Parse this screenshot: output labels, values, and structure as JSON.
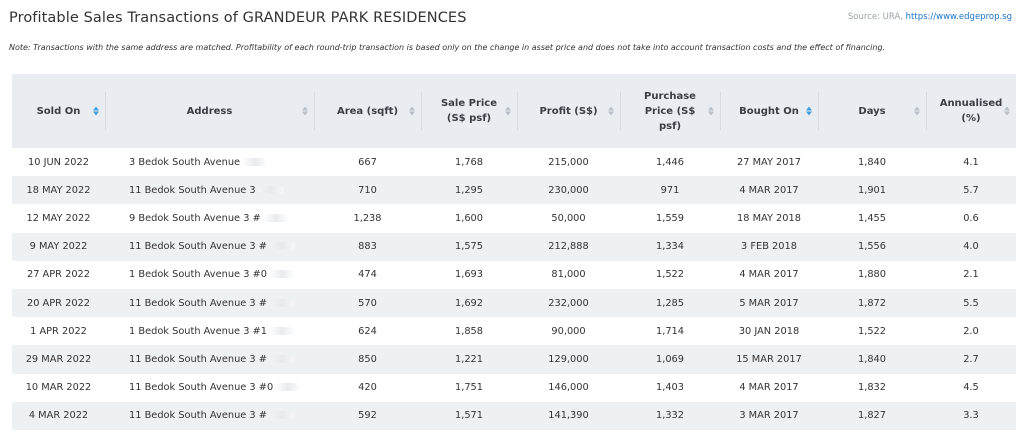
{
  "title": "Profitable Sales Transactions of GRANDEUR PARK RESIDENCES",
  "source": {
    "prefix": "Source: URA,",
    "link": "https://www.edgeprop.sg"
  },
  "note": "Note: Transactions with the same address are matched. Profitability of each round-trip transaction is based only on the change in asset price and does not take into account transaction costs and the effect of financing.",
  "columns": [
    {
      "label": "Sold On",
      "sort": "active"
    },
    {
      "label": "Address",
      "sort": "inactive"
    },
    {
      "label": "Area (sqft)",
      "sort": "inactive"
    },
    {
      "label": "Sale Price (S$ psf)",
      "sort": "inactive"
    },
    {
      "label": "Profit (S$)",
      "sort": "inactive"
    },
    {
      "label": "Purchase Price (S$ psf)",
      "sort": "inactive"
    },
    {
      "label": "Bought On",
      "sort": "active"
    },
    {
      "label": "Days",
      "sort": "inactive"
    },
    {
      "label": "Annualised (%)",
      "sort": "inactive"
    }
  ],
  "rows": [
    {
      "sold_on": "10 JUN 2022",
      "address": "3 Bedok South Avenue",
      "area": "667",
      "sale_price": "1,768",
      "profit": "215,000",
      "purchase_price": "1,446",
      "bought_on": "27 MAY 2017",
      "days": "1,840",
      "annualised": "4.1"
    },
    {
      "sold_on": "18 MAY 2022",
      "address": "11 Bedok South Avenue 3",
      "area": "710",
      "sale_price": "1,295",
      "profit": "230,000",
      "purchase_price": "971",
      "bought_on": "4 MAR 2017",
      "days": "1,901",
      "annualised": "5.7"
    },
    {
      "sold_on": "12 MAY 2022",
      "address": "9 Bedok South Avenue 3 #",
      "area": "1,238",
      "sale_price": "1,600",
      "profit": "50,000",
      "purchase_price": "1,559",
      "bought_on": "18 MAY 2018",
      "days": "1,455",
      "annualised": "0.6"
    },
    {
      "sold_on": "9 MAY 2022",
      "address": "11 Bedok South Avenue 3 #",
      "area": "883",
      "sale_price": "1,575",
      "profit": "212,888",
      "purchase_price": "1,334",
      "bought_on": "3 FEB 2018",
      "days": "1,556",
      "annualised": "4.0"
    },
    {
      "sold_on": "27 APR 2022",
      "address": "1 Bedok South Avenue 3 #0",
      "area": "474",
      "sale_price": "1,693",
      "profit": "81,000",
      "purchase_price": "1,522",
      "bought_on": "4 MAR 2017",
      "days": "1,880",
      "annualised": "2.1"
    },
    {
      "sold_on": "20 APR 2022",
      "address": "11 Bedok South Avenue 3 #",
      "area": "570",
      "sale_price": "1,692",
      "profit": "232,000",
      "purchase_price": "1,285",
      "bought_on": "5 MAR 2017",
      "days": "1,872",
      "annualised": "5.5"
    },
    {
      "sold_on": "1 APR 2022",
      "address": "1 Bedok South Avenue 3 #1",
      "area": "624",
      "sale_price": "1,858",
      "profit": "90,000",
      "purchase_price": "1,714",
      "bought_on": "30 JAN 2018",
      "days": "1,522",
      "annualised": "2.0"
    },
    {
      "sold_on": "29 MAR 2022",
      "address": "11 Bedok South Avenue 3 #",
      "area": "850",
      "sale_price": "1,221",
      "profit": "129,000",
      "purchase_price": "1,069",
      "bought_on": "15 MAR 2017",
      "days": "1,840",
      "annualised": "2.7"
    },
    {
      "sold_on": "10 MAR 2022",
      "address": "11 Bedok South Avenue 3 #0",
      "area": "420",
      "sale_price": "1,751",
      "profit": "146,000",
      "purchase_price": "1,403",
      "bought_on": "4 MAR 2017",
      "days": "1,832",
      "annualised": "4.5"
    },
    {
      "sold_on": "4 MAR 2022",
      "address": "11 Bedok South Avenue 3 #",
      "area": "592",
      "sale_price": "1,571",
      "profit": "141,390",
      "purchase_price": "1,332",
      "bought_on": "3 MAR 2017",
      "days": "1,827",
      "annualised": "3.3"
    }
  ]
}
